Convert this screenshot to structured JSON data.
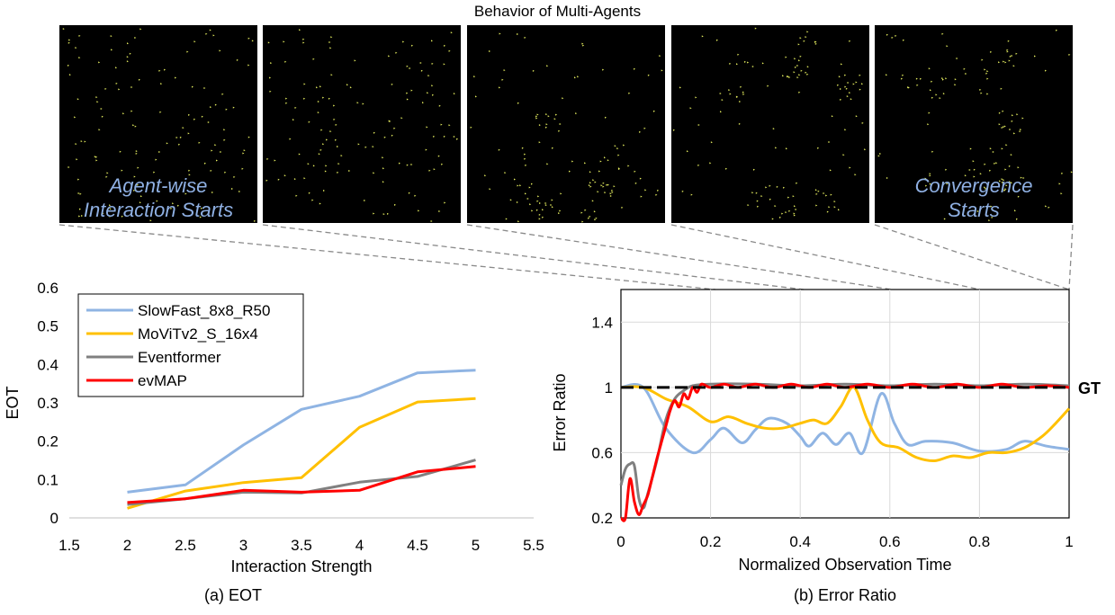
{
  "top_title": "Behavior of Multi-Agents",
  "panels": [
    {
      "label_lines": [
        "Agent-wise",
        "Interaction Starts"
      ],
      "seed": 11
    },
    {
      "label_lines": [],
      "seed": 23
    },
    {
      "label_lines": [],
      "seed": 37
    },
    {
      "label_lines": [],
      "seed": 51
    },
    {
      "label_lines": [
        "Convergence",
        "Starts"
      ],
      "seed": 67
    }
  ],
  "colors": {
    "slowfast": "#8fb4e3",
    "movit": "#ffc000",
    "eventformer": "#808080",
    "evmap": "#ff0000",
    "agents": "#e8f060",
    "panel_bg": "#000000",
    "label": "#8fb0e3"
  },
  "chart_data": [
    {
      "type": "line",
      "caption": "(a) EOT",
      "xlabel": "Interaction Strength",
      "ylabel": "EOT",
      "xlim": [
        1.5,
        5.5
      ],
      "ylim": [
        0,
        0.6
      ],
      "xticks": [
        1.5,
        2,
        2.5,
        3,
        3.5,
        4,
        4.5,
        5,
        5.5
      ],
      "xtick_labels": [
        "1.5",
        "2",
        "2.5",
        "3",
        "3.5",
        "4",
        "4.5",
        "5",
        "5.5"
      ],
      "yticks": [
        0,
        0.1,
        0.2,
        0.3,
        0.4,
        0.5,
        0.6
      ],
      "ytick_labels": [
        "0",
        "0.1",
        "0.2",
        "0.3",
        "0.4",
        "0.5",
        "0.6"
      ],
      "grid": false,
      "legend": "top-left",
      "x": [
        2,
        2.5,
        3,
        3.5,
        4,
        4.5,
        5
      ],
      "series": [
        {
          "name": "SlowFast_8x8_R50",
          "color": "#8fb4e3",
          "values": [
            0.067,
            0.086,
            0.19,
            0.283,
            0.317,
            0.378,
            0.385
          ]
        },
        {
          "name": "MoViTv2_S_16x4",
          "color": "#ffc000",
          "values": [
            0.025,
            0.07,
            0.092,
            0.105,
            0.236,
            0.302,
            0.311
          ]
        },
        {
          "name": "Eventformer",
          "color": "#808080",
          "values": [
            0.035,
            0.05,
            0.067,
            0.065,
            0.093,
            0.108,
            0.151
          ]
        },
        {
          "name": "evMAP",
          "color": "#ff0000",
          "values": [
            0.04,
            0.05,
            0.072,
            0.067,
            0.072,
            0.12,
            0.134
          ]
        }
      ]
    },
    {
      "type": "line",
      "caption": "(b) Error Ratio",
      "xlabel": "Normalized Observation Time",
      "ylabel": "Error Ratio",
      "xlim": [
        0,
        1
      ],
      "ylim": [
        0.2,
        1.6
      ],
      "xticks": [
        0,
        0.2,
        0.4,
        0.6,
        0.8,
        1
      ],
      "xtick_labels": [
        "0",
        "0.2",
        "0.4",
        "0.6",
        "0.8",
        "1"
      ],
      "yticks": [
        0.2,
        0.6,
        1,
        1.4
      ],
      "ytick_labels": [
        "0.2",
        "0.6",
        "1",
        "1.4"
      ],
      "grid": true,
      "gt_value": 1,
      "gt_label": "GT",
      "series": [
        {
          "name": "SlowFast_8x8_R50",
          "color": "#8fb4e3",
          "points": [
            [
              0,
              1.0
            ],
            [
              0.05,
              1.0
            ],
            [
              0.1,
              0.75
            ],
            [
              0.16,
              0.6
            ],
            [
              0.2,
              0.68
            ],
            [
              0.23,
              0.75
            ],
            [
              0.27,
              0.66
            ],
            [
              0.3,
              0.74
            ],
            [
              0.33,
              0.81
            ],
            [
              0.37,
              0.78
            ],
            [
              0.4,
              0.7
            ],
            [
              0.42,
              0.64
            ],
            [
              0.45,
              0.72
            ],
            [
              0.48,
              0.65
            ],
            [
              0.51,
              0.72
            ],
            [
              0.54,
              0.6
            ],
            [
              0.58,
              0.96
            ],
            [
              0.61,
              0.78
            ],
            [
              0.64,
              0.65
            ],
            [
              0.68,
              0.67
            ],
            [
              0.74,
              0.66
            ],
            [
              0.8,
              0.61
            ],
            [
              0.86,
              0.62
            ],
            [
              0.9,
              0.67
            ],
            [
              0.95,
              0.64
            ],
            [
              1.0,
              0.62
            ]
          ]
        },
        {
          "name": "MoViTv2_S_16x4",
          "color": "#ffc000",
          "points": [
            [
              0,
              1.0
            ],
            [
              0.05,
              1.0
            ],
            [
              0.1,
              0.93
            ],
            [
              0.15,
              0.88
            ],
            [
              0.2,
              0.79
            ],
            [
              0.24,
              0.82
            ],
            [
              0.28,
              0.78
            ],
            [
              0.32,
              0.75
            ],
            [
              0.36,
              0.75
            ],
            [
              0.4,
              0.78
            ],
            [
              0.43,
              0.8
            ],
            [
              0.46,
              0.78
            ],
            [
              0.49,
              0.88
            ],
            [
              0.52,
              1.0
            ],
            [
              0.55,
              0.8
            ],
            [
              0.58,
              0.66
            ],
            [
              0.62,
              0.63
            ],
            [
              0.66,
              0.57
            ],
            [
              0.7,
              0.55
            ],
            [
              0.74,
              0.58
            ],
            [
              0.78,
              0.57
            ],
            [
              0.82,
              0.6
            ],
            [
              0.86,
              0.6
            ],
            [
              0.9,
              0.63
            ],
            [
              0.94,
              0.7
            ],
            [
              0.97,
              0.78
            ],
            [
              1.0,
              0.87
            ]
          ]
        },
        {
          "name": "Eventformer",
          "color": "#808080",
          "points": [
            [
              0,
              0.4
            ],
            [
              0.01,
              0.5
            ],
            [
              0.02,
              0.53
            ],
            [
              0.03,
              0.52
            ],
            [
              0.04,
              0.32
            ],
            [
              0.05,
              0.26
            ],
            [
              0.06,
              0.35
            ],
            [
              0.08,
              0.55
            ],
            [
              0.1,
              0.8
            ],
            [
              0.12,
              0.93
            ],
            [
              0.14,
              0.98
            ],
            [
              0.16,
              1.01
            ],
            [
              0.2,
              1.02
            ],
            [
              0.3,
              1.02
            ],
            [
              0.4,
              1.01
            ],
            [
              0.5,
              1.02
            ],
            [
              0.6,
              1.01
            ],
            [
              0.7,
              1.02
            ],
            [
              0.8,
              1.01
            ],
            [
              0.9,
              1.02
            ],
            [
              1.0,
              1.01
            ]
          ]
        },
        {
          "name": "evMAP",
          "color": "#ff0000",
          "points": [
            [
              0,
              0.2
            ],
            [
              0.01,
              0.2
            ],
            [
              0.02,
              0.44
            ],
            [
              0.03,
              0.3
            ],
            [
              0.04,
              0.22
            ],
            [
              0.05,
              0.28
            ],
            [
              0.06,
              0.34
            ],
            [
              0.07,
              0.45
            ],
            [
              0.08,
              0.56
            ],
            [
              0.09,
              0.66
            ],
            [
              0.1,
              0.76
            ],
            [
              0.11,
              0.86
            ],
            [
              0.12,
              0.92
            ],
            [
              0.13,
              0.88
            ],
            [
              0.14,
              0.96
            ],
            [
              0.15,
              0.93
            ],
            [
              0.16,
              1.0
            ],
            [
              0.17,
              0.97
            ],
            [
              0.18,
              1.02
            ],
            [
              0.2,
              1.0
            ],
            [
              0.23,
              1.02
            ],
            [
              0.26,
              1.0
            ],
            [
              0.3,
              1.02
            ],
            [
              0.34,
              1.0
            ],
            [
              0.38,
              1.02
            ],
            [
              0.42,
              1.0
            ],
            [
              0.46,
              1.02
            ],
            [
              0.5,
              1.0
            ],
            [
              0.55,
              1.02
            ],
            [
              0.6,
              1.0
            ],
            [
              0.65,
              1.02
            ],
            [
              0.7,
              1.0
            ],
            [
              0.75,
              1.02
            ],
            [
              0.8,
              1.0
            ],
            [
              0.85,
              1.02
            ],
            [
              0.9,
              1.0
            ],
            [
              0.95,
              1.01
            ],
            [
              1.0,
              1.0
            ]
          ]
        }
      ]
    }
  ]
}
